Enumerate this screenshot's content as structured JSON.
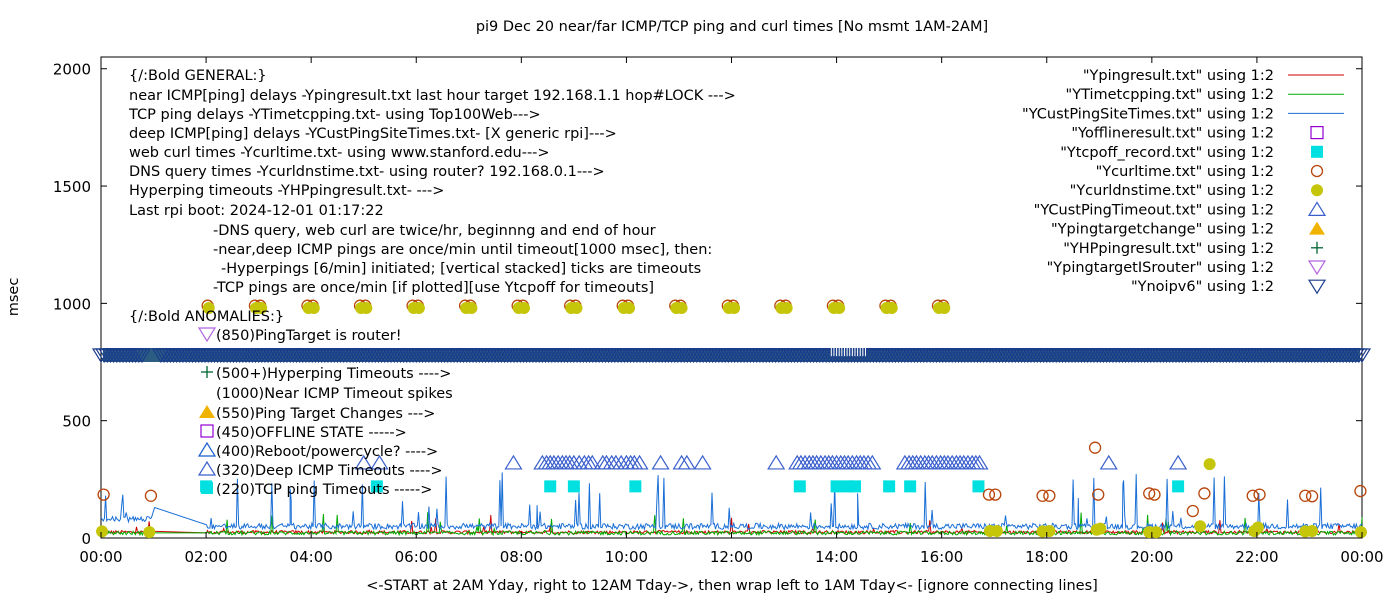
{
  "chart_data": {
    "type": "scatter",
    "title": "pi9 Dec 20  near/far ICMP/TCP ping and curl times [No msmt 1AM-2AM]",
    "xlabel": "<-START at 2AM Yday, right to 12AM Tday->, then wrap left to 1AM Tday<- [ignore connecting lines]",
    "ylabel": "msec",
    "xlim": [
      0,
      24
    ],
    "ylim": [
      0,
      2050
    ],
    "x_ticks": [
      "00:00",
      "02:00",
      "04:00",
      "06:00",
      "08:00",
      "10:00",
      "12:00",
      "14:00",
      "16:00",
      "18:00",
      "20:00",
      "22:00",
      "00:00"
    ],
    "y_ticks": [
      "0",
      "500",
      "1000",
      "1500",
      "2000"
    ],
    "grid": false,
    "legend_position": "top-right",
    "legend": [
      {
        "label": "\"Ypingresult.txt\" using 1:2",
        "symbol": "line",
        "color": "#cc0000"
      },
      {
        "label": "\"YTimetcpping.txt\" using 1:2",
        "symbol": "line",
        "color": "#00aa00"
      },
      {
        "label": "\"YCustPingSiteTimes.txt\" using 1:2",
        "symbol": "line",
        "color": "#1a6fd6"
      },
      {
        "label": "\"Yofflineresult.txt\" using 1:2",
        "symbol": "open-square",
        "color": "#9400d3"
      },
      {
        "label": "\"Ytcpoff_record.txt\" using 1:2",
        "symbol": "filled-square",
        "color": "#00e0e0"
      },
      {
        "label": "\"Ycurltime.txt\" using 1:2",
        "symbol": "open-circle",
        "color": "#b8450b"
      },
      {
        "label": "\"Ycurldnstime.txt\" using 1:2",
        "symbol": "filled-circle",
        "color": "#c5c50a"
      },
      {
        "label": "\"YCustPingTimeout.txt\" using 1:2",
        "symbol": "open-triangle",
        "color": "#3a5fcd"
      },
      {
        "label": "\"Ypingtargetchange\" using 1:2",
        "symbol": "filled-triangle",
        "color": "#f0b400"
      },
      {
        "label": "\"YHPpingresult.txt\" using 1:2",
        "symbol": "plus",
        "color": "#006633"
      },
      {
        "label": "\"YpingtargetISrouter\" using 1:2",
        "symbol": "open-down-triangle",
        "color": "#b266e0"
      },
      {
        "label": "\"Ynoipv6\" using 1:2",
        "symbol": "open-down-triangle",
        "color": "#1a3c8c"
      }
    ],
    "annotations": [
      "{/:Bold GENERAL:}",
      "near ICMP[ping] delays -Ypingresult.txt last hour target 192.168.1.1 hop#LOCK --->",
      "TCP ping delays -YTimetcpping.txt- using Top100Web--->",
      "deep ICMP[ping] delays -YCustPingSiteTimes.txt- [X generic rpi]--->",
      "web curl times -Ycurltime.txt- using www.stanford.edu--->",
      "DNS query times -Ycurldnstime.txt- using router? 192.168.0.1--->",
      "Hyperping timeouts -YHPpingresult.txt- --->",
      "Last rpi boot: 2024-12-01 01:17:22",
      "-DNS query, web curl are twice/hr, beginnng and end of hour",
      "-near,deep ICMP pings are once/min until timeout[1000 msec], then:",
      "-Hyperpings [6/min] initiated; [vertical stacked] ticks are timeouts",
      "-TCP pings are once/min [if plotted][use Ytcpoff for timeouts]",
      "{/:Bold ANOMALIES:}",
      "(850)PingTarget is router!",
      "(500+)Hyperping Timeouts ---->",
      "(1000)Near ICMP Timeout spikes",
      "(550)Ping Target Changes --->",
      "(450)OFFLINE STATE ----->",
      "(400)Reboot/powercycle? ---->",
      "(320)Deep ICMP Timeouts ---->",
      "(220)TCP ping Timeouts ----->"
    ],
    "series": [
      {
        "name": "\"Ypingresult.txt\" using 1:2",
        "kind": "noise",
        "base": 22,
        "amp": 14,
        "spike_prob": 0.02,
        "spike_max": 70,
        "color": "#cc0000"
      },
      {
        "name": "\"YTimetcpping.txt\" using 1:2",
        "kind": "noise",
        "base": 18,
        "amp": 16,
        "spike_prob": 0.03,
        "spike_max": 90,
        "color": "#00aa00"
      },
      {
        "name": "\"YCustPingSiteTimes.txt\" using 1:2",
        "kind": "noise",
        "base": 45,
        "amp": 25,
        "spike_prob": 0.035,
        "spike_max": 220,
        "color": "#1a6fd6",
        "spikes": [
          [
            1.02,
            130
          ],
          [
            3.6,
            210
          ],
          [
            3.62,
            160
          ],
          [
            8.3,
            140
          ],
          [
            14.4,
            190
          ],
          [
            18.6,
            170
          ],
          [
            19.45,
            230
          ]
        ]
      },
      {
        "name": "\"Ytcpoff_record.txt\" using 1:2",
        "x": [
          2.0,
          5.25,
          8.55,
          9.0,
          10.17,
          13.3,
          14.0,
          14.2,
          14.35,
          15.0,
          15.4,
          16.7,
          20.5
        ],
        "y": [
          220,
          220,
          220,
          220,
          220,
          220,
          220,
          220,
          220,
          220,
          220,
          220,
          220
        ]
      },
      {
        "name": "\"Ycurltime.txt\" using 1:2",
        "x": [
          0.05,
          0.95,
          2.03,
          2.93,
          3.03,
          3.93,
          4.03,
          4.93,
          5.03,
          5.93,
          6.03,
          6.93,
          7.03,
          7.93,
          8.03,
          8.93,
          9.03,
          9.93,
          10.03,
          10.93,
          11.03,
          11.93,
          12.03,
          12.93,
          13.03,
          13.93,
          14.03,
          14.93,
          15.03,
          15.93,
          16.03,
          16.9,
          17.02,
          17.92,
          18.05,
          18.92,
          18.98,
          19.95,
          20.05,
          20.78,
          21.0,
          21.92,
          22.05,
          22.92,
          23.05,
          23.97
        ],
        "y": [
          185,
          180,
          990,
          990,
          990,
          990,
          990,
          990,
          990,
          990,
          990,
          990,
          990,
          990,
          990,
          990,
          990,
          990,
          990,
          990,
          990,
          990,
          990,
          990,
          990,
          990,
          990,
          990,
          990,
          990,
          990,
          185,
          185,
          180,
          180,
          385,
          185,
          190,
          185,
          115,
          190,
          180,
          185,
          180,
          178,
          200
        ]
      },
      {
        "name": "\"Ycurldnstime.txt\" using 1:2",
        "x": [
          0.02,
          0.92,
          2.05,
          2.95,
          3.05,
          3.95,
          4.05,
          4.95,
          5.05,
          5.95,
          6.05,
          6.95,
          7.05,
          7.95,
          8.05,
          8.95,
          9.05,
          9.95,
          10.05,
          10.95,
          11.05,
          11.95,
          12.05,
          12.95,
          13.05,
          13.95,
          14.05,
          14.95,
          15.05,
          15.95,
          16.05,
          16.92,
          17.05,
          17.92,
          18.05,
          18.95,
          19.02,
          19.95,
          20.08,
          20.92,
          21.1,
          21.95,
          22.02,
          22.92,
          23.05,
          23.98
        ],
        "y": [
          28,
          25,
          980,
          980,
          980,
          980,
          980,
          980,
          980,
          980,
          980,
          980,
          980,
          980,
          980,
          980,
          980,
          980,
          980,
          980,
          980,
          980,
          980,
          980,
          980,
          980,
          980,
          980,
          980,
          980,
          980,
          30,
          30,
          28,
          30,
          35,
          40,
          25,
          25,
          50,
          315,
          30,
          45,
          28,
          30,
          25
        ]
      },
      {
        "name": "\"YCustPingTimeout.txt\" using 1:2",
        "x": [
          5.0,
          5.3,
          7.85,
          8.4,
          8.48,
          8.55,
          8.62,
          8.7,
          8.78,
          8.85,
          8.92,
          9.0,
          9.1,
          9.2,
          9.28,
          9.35,
          9.55,
          9.62,
          9.72,
          9.8,
          9.9,
          10.0,
          10.08,
          10.15,
          10.25,
          10.65,
          11.05,
          11.15,
          11.45,
          12.85,
          13.25,
          13.32,
          13.4,
          13.48,
          13.55,
          13.62,
          13.7,
          13.78,
          13.85,
          13.92,
          14.0,
          14.08,
          14.15,
          14.22,
          14.3,
          14.38,
          14.45,
          14.52,
          14.6,
          14.68,
          15.3,
          15.38,
          15.45,
          15.52,
          15.6,
          15.68,
          15.75,
          15.82,
          15.9,
          15.98,
          16.05,
          16.12,
          16.2,
          16.28,
          16.35,
          16.42,
          16.5,
          16.58,
          16.65,
          16.72,
          19.18,
          20.5
        ],
        "y": [
          320,
          320,
          320,
          320,
          320,
          320,
          320,
          320,
          320,
          320,
          320,
          320,
          320,
          320,
          320,
          320,
          320,
          320,
          320,
          320,
          320,
          320,
          320,
          320,
          320,
          320,
          320,
          320,
          320,
          320,
          320,
          320,
          320,
          320,
          320,
          320,
          320,
          320,
          320,
          320,
          320,
          320,
          320,
          320,
          320,
          320,
          320,
          320,
          320,
          320,
          320,
          320,
          320,
          320,
          320,
          320,
          320,
          320,
          320,
          320,
          320,
          320,
          320,
          320,
          320,
          320,
          320,
          320,
          320,
          320,
          320,
          320
        ]
      },
      {
        "name": "\"Ynoipv6\" using 1:2",
        "kind": "band",
        "y": 780,
        "x_from": 0,
        "x_to": 24,
        "marker_every": 0.06
      }
    ]
  }
}
